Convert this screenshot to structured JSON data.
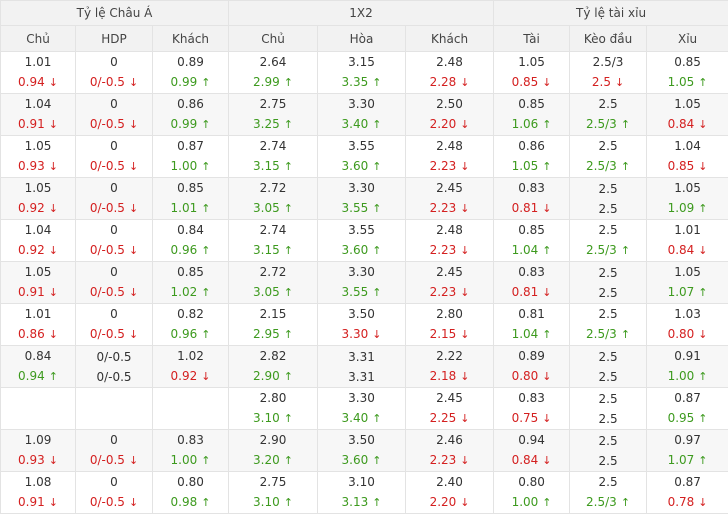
{
  "groups": [
    "Tỷ lệ Châu Á",
    "1X2",
    "Tỷ lệ tài xỉu"
  ],
  "columns": [
    "Chủ",
    "HDP",
    "Khách",
    "Chủ",
    "Hòa",
    "Khách",
    "Tài",
    "Kèo đầu",
    "Xỉu"
  ],
  "rows": [
    {
      "cells": [
        {
          "top": "1.01",
          "bottom": "0.94",
          "dir": "down"
        },
        {
          "top": "0",
          "bottom": "0/-0.5",
          "dir": "down"
        },
        {
          "top": "0.89",
          "bottom": "0.99",
          "dir": "up"
        },
        {
          "top": "2.64",
          "bottom": "2.99",
          "dir": "up"
        },
        {
          "top": "3.15",
          "bottom": "3.35",
          "dir": "up"
        },
        {
          "top": "2.48",
          "bottom": "2.28",
          "dir": "down"
        },
        {
          "top": "1.05",
          "bottom": "0.85",
          "dir": "down"
        },
        {
          "top": "2.5/3",
          "bottom": "2.5",
          "dir": "down"
        },
        {
          "top": "0.85",
          "bottom": "1.05",
          "dir": "up"
        }
      ]
    },
    {
      "cells": [
        {
          "top": "1.04",
          "bottom": "0.91",
          "dir": "down"
        },
        {
          "top": "0",
          "bottom": "0/-0.5",
          "dir": "down"
        },
        {
          "top": "0.86",
          "bottom": "0.99",
          "dir": "up"
        },
        {
          "top": "2.75",
          "bottom": "3.25",
          "dir": "up"
        },
        {
          "top": "3.30",
          "bottom": "3.40",
          "dir": "up"
        },
        {
          "top": "2.50",
          "bottom": "2.20",
          "dir": "down"
        },
        {
          "top": "0.85",
          "bottom": "1.06",
          "dir": "up"
        },
        {
          "top": "2.5",
          "bottom": "2.5/3",
          "dir": "up"
        },
        {
          "top": "1.05",
          "bottom": "0.84",
          "dir": "down"
        }
      ]
    },
    {
      "cells": [
        {
          "top": "1.05",
          "bottom": "0.93",
          "dir": "down"
        },
        {
          "top": "0",
          "bottom": "0/-0.5",
          "dir": "down"
        },
        {
          "top": "0.87",
          "bottom": "1.00",
          "dir": "up"
        },
        {
          "top": "2.74",
          "bottom": "3.15",
          "dir": "up"
        },
        {
          "top": "3.55",
          "bottom": "3.60",
          "dir": "up"
        },
        {
          "top": "2.48",
          "bottom": "2.23",
          "dir": "down"
        },
        {
          "top": "0.86",
          "bottom": "1.05",
          "dir": "up"
        },
        {
          "top": "2.5",
          "bottom": "2.5/3",
          "dir": "up"
        },
        {
          "top": "1.04",
          "bottom": "0.85",
          "dir": "down"
        }
      ]
    },
    {
      "cells": [
        {
          "top": "1.05",
          "bottom": "0.92",
          "dir": "down"
        },
        {
          "top": "0",
          "bottom": "0/-0.5",
          "dir": "down"
        },
        {
          "top": "0.85",
          "bottom": "1.01",
          "dir": "up"
        },
        {
          "top": "2.72",
          "bottom": "3.05",
          "dir": "up"
        },
        {
          "top": "3.30",
          "bottom": "3.55",
          "dir": "up"
        },
        {
          "top": "2.45",
          "bottom": "2.23",
          "dir": "down"
        },
        {
          "top": "0.83",
          "bottom": "0.81",
          "dir": "down"
        },
        {
          "top": "2.5",
          "bottom": "2.5",
          "dir": "none"
        },
        {
          "top": "1.05",
          "bottom": "1.09",
          "dir": "up"
        }
      ]
    },
    {
      "cells": [
        {
          "top": "1.04",
          "bottom": "0.92",
          "dir": "down"
        },
        {
          "top": "0",
          "bottom": "0/-0.5",
          "dir": "down"
        },
        {
          "top": "0.84",
          "bottom": "0.96",
          "dir": "up"
        },
        {
          "top": "2.74",
          "bottom": "3.15",
          "dir": "up"
        },
        {
          "top": "3.55",
          "bottom": "3.60",
          "dir": "up"
        },
        {
          "top": "2.48",
          "bottom": "2.23",
          "dir": "down"
        },
        {
          "top": "0.85",
          "bottom": "1.04",
          "dir": "up"
        },
        {
          "top": "2.5",
          "bottom": "2.5/3",
          "dir": "up"
        },
        {
          "top": "1.01",
          "bottom": "0.84",
          "dir": "down"
        }
      ]
    },
    {
      "cells": [
        {
          "top": "1.05",
          "bottom": "0.91",
          "dir": "down"
        },
        {
          "top": "0",
          "bottom": "0/-0.5",
          "dir": "down"
        },
        {
          "top": "0.85",
          "bottom": "1.02",
          "dir": "up"
        },
        {
          "top": "2.72",
          "bottom": "3.05",
          "dir": "up"
        },
        {
          "top": "3.30",
          "bottom": "3.55",
          "dir": "up"
        },
        {
          "top": "2.45",
          "bottom": "2.23",
          "dir": "down"
        },
        {
          "top": "0.83",
          "bottom": "0.81",
          "dir": "down"
        },
        {
          "top": "2.5",
          "bottom": "2.5",
          "dir": "none"
        },
        {
          "top": "1.05",
          "bottom": "1.07",
          "dir": "up"
        }
      ]
    },
    {
      "cells": [
        {
          "top": "1.01",
          "bottom": "0.86",
          "dir": "down"
        },
        {
          "top": "0",
          "bottom": "0/-0.5",
          "dir": "down"
        },
        {
          "top": "0.82",
          "bottom": "0.96",
          "dir": "up"
        },
        {
          "top": "2.15",
          "bottom": "2.95",
          "dir": "up"
        },
        {
          "top": "3.50",
          "bottom": "3.30",
          "dir": "down"
        },
        {
          "top": "2.80",
          "bottom": "2.15",
          "dir": "down"
        },
        {
          "top": "0.81",
          "bottom": "1.04",
          "dir": "up"
        },
        {
          "top": "2.5",
          "bottom": "2.5/3",
          "dir": "up"
        },
        {
          "top": "1.03",
          "bottom": "0.80",
          "dir": "down"
        }
      ]
    },
    {
      "cells": [
        {
          "top": "0.84",
          "bottom": "0.94",
          "dir": "up"
        },
        {
          "top": "0/-0.5",
          "bottom": "0/-0.5",
          "dir": "none"
        },
        {
          "top": "1.02",
          "bottom": "0.92",
          "dir": "down"
        },
        {
          "top": "2.82",
          "bottom": "2.90",
          "dir": "up"
        },
        {
          "top": "3.31",
          "bottom": "3.31",
          "dir": "none"
        },
        {
          "top": "2.22",
          "bottom": "2.18",
          "dir": "down"
        },
        {
          "top": "0.89",
          "bottom": "0.80",
          "dir": "down"
        },
        {
          "top": "2.5",
          "bottom": "2.5",
          "dir": "none"
        },
        {
          "top": "0.91",
          "bottom": "1.00",
          "dir": "up"
        }
      ]
    },
    {
      "cells": [
        {
          "top": "",
          "bottom": "",
          "dir": "none"
        },
        {
          "top": "",
          "bottom": "",
          "dir": "none"
        },
        {
          "top": "",
          "bottom": "",
          "dir": "none"
        },
        {
          "top": "2.80",
          "bottom": "3.10",
          "dir": "up"
        },
        {
          "top": "3.30",
          "bottom": "3.40",
          "dir": "up"
        },
        {
          "top": "2.45",
          "bottom": "2.25",
          "dir": "down"
        },
        {
          "top": "0.83",
          "bottom": "0.75",
          "dir": "down"
        },
        {
          "top": "2.5",
          "bottom": "2.5",
          "dir": "none"
        },
        {
          "top": "0.87",
          "bottom": "0.95",
          "dir": "up"
        }
      ]
    },
    {
      "cells": [
        {
          "top": "1.09",
          "bottom": "0.93",
          "dir": "down"
        },
        {
          "top": "0",
          "bottom": "0/-0.5",
          "dir": "down"
        },
        {
          "top": "0.83",
          "bottom": "1.00",
          "dir": "up"
        },
        {
          "top": "2.90",
          "bottom": "3.20",
          "dir": "up"
        },
        {
          "top": "3.50",
          "bottom": "3.60",
          "dir": "up"
        },
        {
          "top": "2.46",
          "bottom": "2.23",
          "dir": "down"
        },
        {
          "top": "0.94",
          "bottom": "0.84",
          "dir": "down"
        },
        {
          "top": "2.5",
          "bottom": "2.5",
          "dir": "none"
        },
        {
          "top": "0.97",
          "bottom": "1.07",
          "dir": "up"
        }
      ]
    },
    {
      "cells": [
        {
          "top": "1.08",
          "bottom": "0.91",
          "dir": "down"
        },
        {
          "top": "0",
          "bottom": "0/-0.5",
          "dir": "down"
        },
        {
          "top": "0.80",
          "bottom": "0.98",
          "dir": "up"
        },
        {
          "top": "2.75",
          "bottom": "3.10",
          "dir": "up"
        },
        {
          "top": "3.10",
          "bottom": "3.13",
          "dir": "up"
        },
        {
          "top": "2.40",
          "bottom": "2.20",
          "dir": "down"
        },
        {
          "top": "0.80",
          "bottom": "1.00",
          "dir": "up"
        },
        {
          "top": "2.5",
          "bottom": "2.5/3",
          "dir": "up"
        },
        {
          "top": "0.87",
          "bottom": "0.78",
          "dir": "down"
        }
      ]
    }
  ],
  "colors": {
    "up": "#3d9a1e",
    "down": "#d42020",
    "header_bg": "#f2f2f2",
    "stripe_bg": "#f7f7f7",
    "border": "#e3e3e3"
  },
  "icons": {
    "up": "arrow-up-icon",
    "down": "arrow-down-icon"
  }
}
